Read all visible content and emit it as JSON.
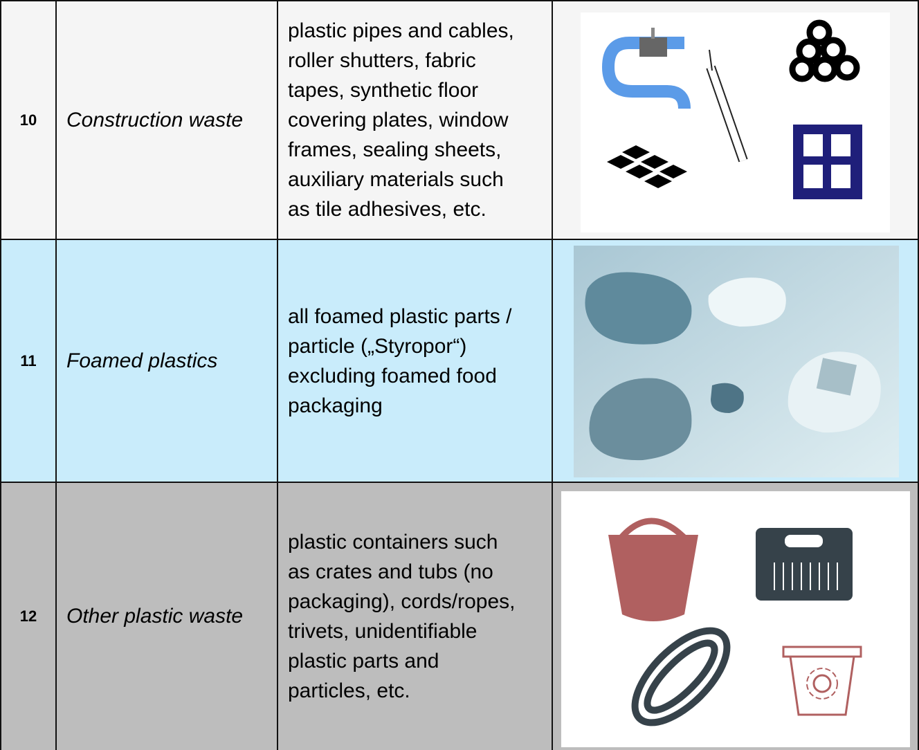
{
  "table": {
    "rows": [
      [
        "10",
        "Construction waste",
        [
          "plastic pipes and cables,",
          "roller shutters, fabric",
          "tapes, synthetic floor",
          "covering plates, window",
          "frames, sealing sheets,",
          "auxiliary materials such",
          "as tile adhesives, etc."
        ]
      ],
      [
        "11",
        "Foamed plastics",
        [
          "all foamed plastic parts /",
          "particle („Styropor“)",
          "excluding foamed food",
          "packaging"
        ]
      ],
      [
        "12",
        "Other plastic waste",
        [
          "plastic containers such",
          "as crates and tubs (no",
          "packaging), cords/ropes,",
          "trivets, unidentifiable",
          "plastic parts and",
          "particles, etc."
        ]
      ]
    ]
  }
}
